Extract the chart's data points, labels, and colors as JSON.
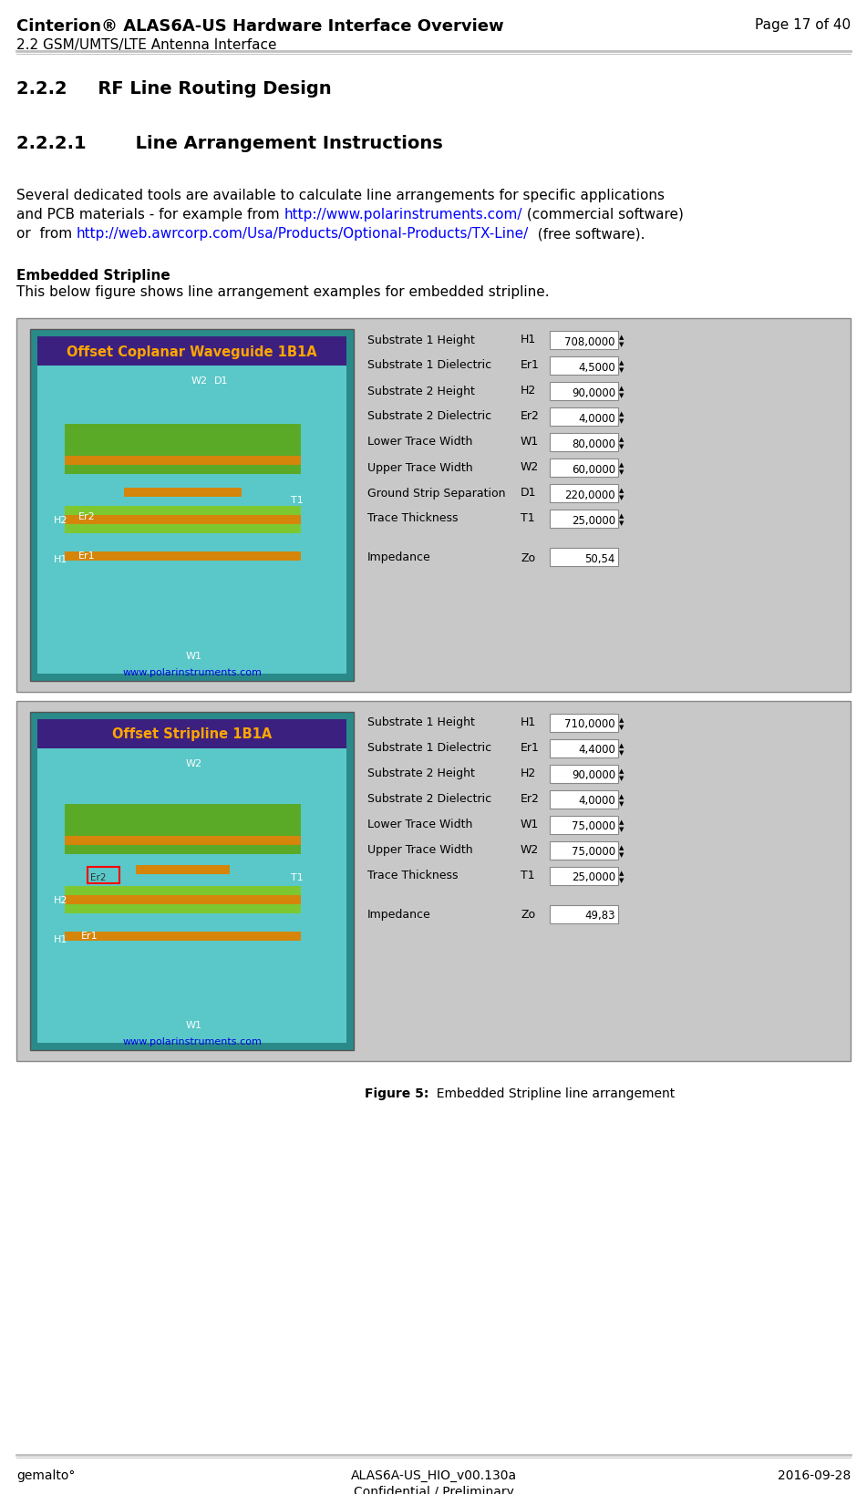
{
  "header_title": "Cinterion® ALAS6A-US Hardware Interface Overview",
  "header_right": "Page 17 of 40",
  "header_sub": "2.2 GSM/UMTS/LTE Antenna Interface",
  "section_title": "2.2.2     RF Line Routing Design",
  "subsection_title": "2.2.2.1        Line Arrangement Instructions",
  "para_line1": "Several dedicated tools are available to calculate line arrangements for specific applications",
  "para_line2a": "and PCB materials - for example from ",
  "para_link1": "http://www.polarinstruments.com/",
  "para_line2b": " (commercial software)",
  "para_line3a": "or  from ",
  "para_link2": "http://web.awrcorp.com/Usa/Products/Optional-Products/TX-Line/",
  "para_line3b": "  (free software).",
  "embedded_label": "Embedded Stripline",
  "embedded_desc": "This below figure shows line arrangement examples for embedded stripline.",
  "img1_title": "Offset Coplanar Waveguide 1B1A",
  "img2_title": "Offset Stripline 1B1A",
  "polar_url": "www.polarinstruments.com",
  "params1": [
    [
      "Substrate 1 Height",
      "H1",
      "708,0000"
    ],
    [
      "Substrate 1 Dielectric",
      "Er1",
      "4,5000"
    ],
    [
      "Substrate 2 Height",
      "H2",
      "90,0000"
    ],
    [
      "Substrate 2 Dielectric",
      "Er2",
      "4,0000"
    ],
    [
      "Lower Trace Width",
      "W1",
      "80,0000"
    ],
    [
      "Upper Trace Width",
      "W2",
      "60,0000"
    ],
    [
      "Ground Strip Separation",
      "D1",
      "220,0000"
    ],
    [
      "Trace Thickness",
      "T1",
      "25,0000"
    ]
  ],
  "imp1": "50,54",
  "params2": [
    [
      "Substrate 1 Height",
      "H1",
      "710,0000"
    ],
    [
      "Substrate 1 Dielectric",
      "Er1",
      "4,4000"
    ],
    [
      "Substrate 2 Height",
      "H2",
      "90,0000"
    ],
    [
      "Substrate 2 Dielectric",
      "Er2",
      "4,0000"
    ],
    [
      "Lower Trace Width",
      "W1",
      "75,0000"
    ],
    [
      "Upper Trace Width",
      "W2",
      "75,0000"
    ],
    [
      "Trace Thickness",
      "T1",
      "25,0000"
    ]
  ],
  "imp2": "49,83",
  "fig_caption_bold": "Figure 5:",
  "fig_caption_normal": "  Embedded Stripline line arrangement",
  "footer_left": "gemalto°",
  "footer_center1": "ALAS6A-US_HIO_v00.130a",
  "footer_center2": "Confidential / Preliminary",
  "footer_right": "2016-09-28",
  "bg_color": "#FFFFFF",
  "panel_bg": "#C8C8C8",
  "teal_outer": "#2A8A8A",
  "teal_inner": "#5AC8C8",
  "dark_blue_bar": "#3B2080",
  "orange_title": "#FFA500",
  "header_line_color": "#C0C0C0",
  "footer_line_color": "#C0C0C0"
}
